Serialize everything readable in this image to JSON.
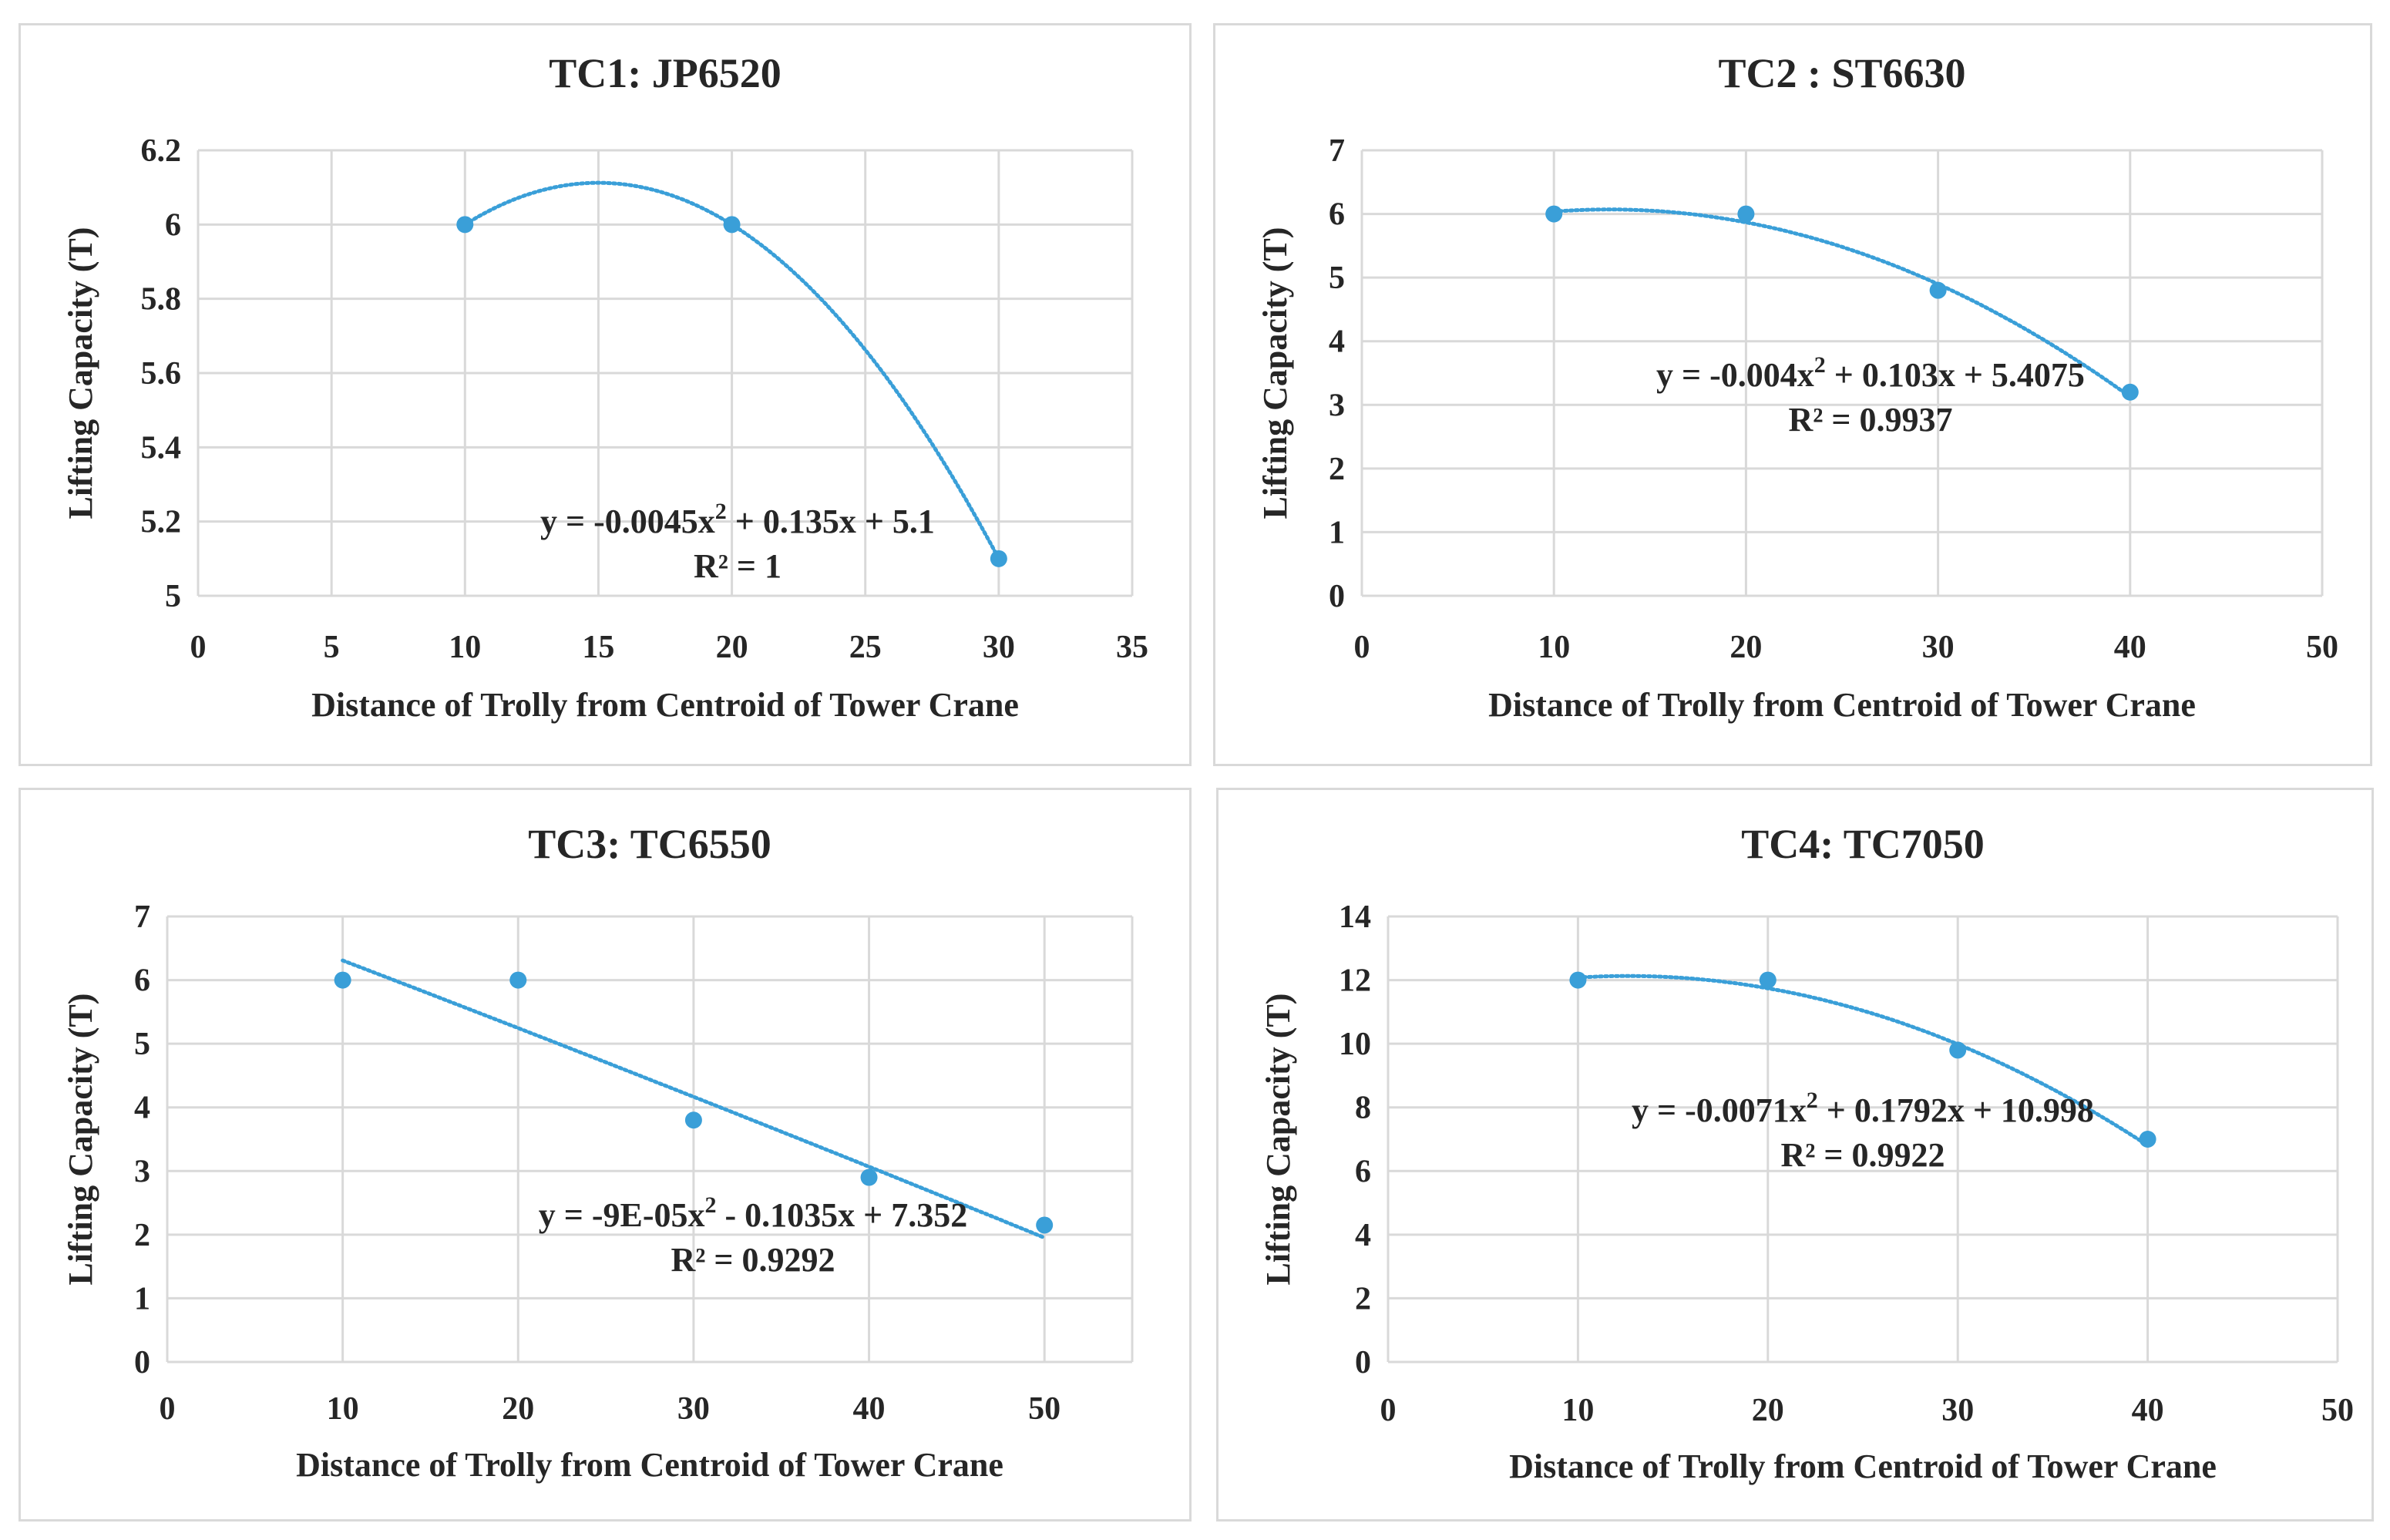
{
  "colors": {
    "marker": "#3a9fd8",
    "trendline": "#3a9fd8",
    "grid": "#d9d9d9",
    "text": "#262626"
  },
  "chart_data": [
    {
      "id": "tc1",
      "type": "scatter",
      "title": "TC1: JP6520",
      "xlabel": "Distance of Trolly from Centroid of Tower Crane",
      "ylabel": "Lifting Capacity (T)",
      "xlim": [
        0,
        35
      ],
      "xticks": [
        0,
        5,
        10,
        15,
        20,
        25,
        30,
        35
      ],
      "ylim": [
        5,
        6.2
      ],
      "yticks": [
        5,
        5.2,
        5.4,
        5.6,
        5.8,
        6,
        6.2
      ],
      "tick_decimals": 1,
      "x": [
        10,
        20,
        30
      ],
      "y": [
        6,
        6,
        5.1
      ],
      "trendline": {
        "type": "polynomial",
        "coef": [
          -0.0045,
          0.135,
          5.1
        ],
        "x_range": [
          10,
          30
        ]
      },
      "equation": {
        "prefix": "y = -0.0045x",
        "sup": "2",
        "suffix": " + 0.135x + 5.1",
        "r2": "R² = 1"
      }
    },
    {
      "id": "tc2",
      "type": "scatter",
      "title": "TC2 : ST6630",
      "xlabel": "Distance of Trolly from Centroid of Tower Crane",
      "ylabel": "Lifting Capacity (T)",
      "xlim": [
        0,
        50
      ],
      "xticks": [
        0,
        10,
        20,
        30,
        40,
        50
      ],
      "ylim": [
        0,
        7
      ],
      "yticks": [
        0,
        1,
        2,
        3,
        4,
        5,
        6,
        7
      ],
      "tick_decimals": 0,
      "x": [
        10,
        20,
        30,
        40
      ],
      "y": [
        6,
        6,
        4.8,
        3.2
      ],
      "trendline": {
        "type": "polynomial",
        "coef": [
          -0.004,
          0.103,
          5.4075
        ],
        "x_range": [
          10,
          40
        ]
      },
      "equation": {
        "prefix": "y = -0.004x",
        "sup": "2",
        "suffix": " + 0.103x + 5.4075",
        "r2": "R² = 0.9937"
      }
    },
    {
      "id": "tc3",
      "type": "scatter",
      "title": "TC3: TC6550",
      "xlabel": "Distance of Trolly from Centroid of Tower Crane",
      "ylabel": "Lifting Capacity (T)",
      "xlim": [
        0,
        55
      ],
      "xticks": [
        0,
        10,
        20,
        30,
        40,
        50
      ],
      "ylim": [
        0,
        7
      ],
      "yticks": [
        0,
        1,
        2,
        3,
        4,
        5,
        6,
        7
      ],
      "tick_decimals": 0,
      "x": [
        10,
        20,
        30,
        40,
        50
      ],
      "y": [
        6,
        6,
        3.8,
        2.9,
        2.15
      ],
      "trendline": {
        "type": "polynomial",
        "coef": [
          -9e-05,
          -0.1035,
          7.352
        ],
        "x_range": [
          10,
          50
        ]
      },
      "equation": {
        "prefix": "y = -9E-05x",
        "sup": "2",
        "suffix": " - 0.1035x + 7.352",
        "r2": "R² = 0.9292"
      }
    },
    {
      "id": "tc4",
      "type": "scatter",
      "title": "TC4: TC7050",
      "xlabel": "Distance of Trolly from Centroid of Tower Crane",
      "ylabel": "Lifting Capacity (T)",
      "xlim": [
        0,
        50
      ],
      "xticks": [
        0,
        10,
        20,
        30,
        40,
        50
      ],
      "ylim": [
        0,
        14
      ],
      "yticks": [
        0,
        2,
        4,
        6,
        8,
        10,
        12,
        14
      ],
      "tick_decimals": 0,
      "x": [
        10,
        20,
        30,
        40
      ],
      "y": [
        12,
        12,
        9.8,
        7
      ],
      "trendline": {
        "type": "polynomial",
        "coef": [
          -0.0071,
          0.1792,
          10.998
        ],
        "x_range": [
          10,
          40
        ]
      },
      "equation": {
        "prefix": "y = -0.0071x",
        "sup": "2",
        "suffix": " + 0.1792x + 10.998",
        "r2": "R² = 0.9922"
      }
    }
  ]
}
